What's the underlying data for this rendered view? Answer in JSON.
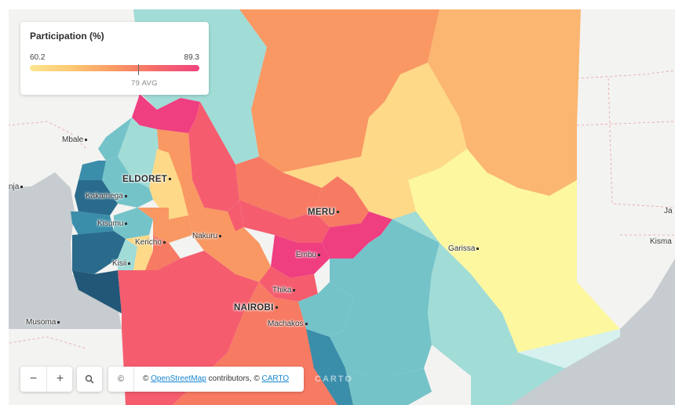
{
  "legend": {
    "title": "Participation (%)",
    "min": "60.2",
    "max": "89.3",
    "avg_label": "79 AVG"
  },
  "controls": {
    "zoom_out": "−",
    "zoom_in": "+",
    "attribution_toggle": "©",
    "attribution_prefix": "© ",
    "osm_link": "OpenStreetMap",
    "attribution_mid": " contributors, © ",
    "carto_link": "CARTO",
    "carto_logo": "CARTO"
  },
  "cities": {
    "mbale": "Mbale",
    "eldoret": "ELDORET",
    "kakamega": "Kakamega",
    "kisumu": "Kisumu",
    "kericho": "Kericho",
    "kisii": "Kisii",
    "nakuru": "Nakuru",
    "meru": "MERU",
    "embu": "Embu",
    "thika": "Thika",
    "nairobi": "NAIROBI",
    "machakos": "Machakos",
    "garissa": "Garissa",
    "musoma": "Musoma",
    "nja": "nja",
    "ja": "Ja",
    "kisma": "Kisma"
  },
  "colors": {
    "water": "#c6cccf",
    "land": "#f3f3f1",
    "c_pink": "#ef3f80",
    "c_rose": "#f55d6f",
    "c_coral": "#f77a63",
    "c_orange": "#f99863",
    "c_lightorange": "#fbb671",
    "c_yellow": "#fdd988",
    "c_paleyellow": "#fdf79f",
    "c_teal_light": "#a1dcd7",
    "c_teal": "#74c3c9",
    "c_blue": "#3b8eaa",
    "c_darkblue": "#2a6b8c",
    "c_navy": "#235777"
  }
}
